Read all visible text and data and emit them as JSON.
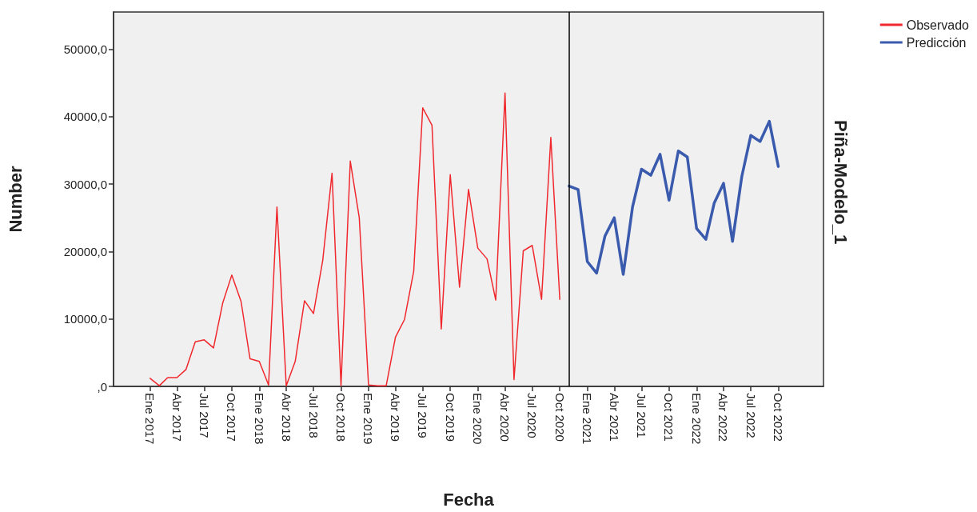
{
  "chart_data": {
    "type": "line",
    "xlabel": "Fecha",
    "ylabel": "Number",
    "annotations": [
      "Piña-Modelo_1"
    ],
    "legend": "top right",
    "xlim": [
      "2016-09-01",
      "2023-03-01"
    ],
    "xticks": [
      {
        "value": "2017-01",
        "label": "Ene 2017"
      },
      {
        "value": "2017-04",
        "label": "Abr 2017"
      },
      {
        "value": "2017-07",
        "label": "Jul 2017"
      },
      {
        "value": "2017-10",
        "label": "Oct 2017"
      },
      {
        "value": "2018-01",
        "label": "Ene 2018"
      },
      {
        "value": "2018-04",
        "label": "Abr 2018"
      },
      {
        "value": "2018-07",
        "label": "Jul 2018"
      },
      {
        "value": "2018-10",
        "label": "Oct 2018"
      },
      {
        "value": "2019-01",
        "label": "Ene 2019"
      },
      {
        "value": "2019-04",
        "label": "Abr 2019"
      },
      {
        "value": "2019-07",
        "label": "Jul 2019"
      },
      {
        "value": "2019-10",
        "label": "Oct 2019"
      },
      {
        "value": "2020-01",
        "label": "Ene 2020"
      },
      {
        "value": "2020-04",
        "label": "Abr 2020"
      },
      {
        "value": "2020-07",
        "label": "Jul 2020"
      },
      {
        "value": "2020-10",
        "label": "Oct 2020"
      },
      {
        "value": "2021-01",
        "label": "Ene 2021"
      },
      {
        "value": "2021-04",
        "label": "Abr 2021"
      },
      {
        "value": "2021-07",
        "label": "Jul 2021"
      },
      {
        "value": "2021-10",
        "label": "Oct 2021"
      },
      {
        "value": "2022-01",
        "label": "Ene 2022"
      },
      {
        "value": "2022-04",
        "label": "Abr 2022"
      },
      {
        "value": "2022-07",
        "label": "Jul 2022"
      },
      {
        "value": "2022-10",
        "label": "Oct 2022"
      }
    ],
    "ylim": [
      0,
      55500
    ],
    "yticks": [
      {
        "value": 0,
        "label": ",0"
      },
      {
        "value": 10000,
        "label": "10000,0"
      },
      {
        "value": 20000,
        "label": "20000,0"
      },
      {
        "value": 30000,
        "label": "30000,0"
      },
      {
        "value": 40000,
        "label": "40000,0"
      },
      {
        "value": 50000,
        "label": "50000,0"
      }
    ],
    "grid": false,
    "marker": "none",
    "ref_lines": [
      {
        "axis": "x",
        "value": "2020-11",
        "color": "#000000"
      }
    ],
    "series": [
      {
        "name": "Observado",
        "color": "#f0282d",
        "x": [
          "2017-01",
          "2017-02",
          "2017-03",
          "2017-04",
          "2017-05",
          "2017-06",
          "2017-07",
          "2017-08",
          "2017-09",
          "2017-10",
          "2017-11",
          "2017-12",
          "2018-01",
          "2018-02",
          "2018-03",
          "2018-04",
          "2018-05",
          "2018-06",
          "2018-07",
          "2018-08",
          "2018-09",
          "2018-10",
          "2018-11",
          "2018-12",
          "2019-01",
          "2019-02",
          "2019-03",
          "2019-04",
          "2019-05",
          "2019-06",
          "2019-07",
          "2019-08",
          "2019-09",
          "2019-10",
          "2019-11",
          "2019-12",
          "2020-01",
          "2020-02",
          "2020-03",
          "2020-04",
          "2020-05",
          "2020-06",
          "2020-07",
          "2020-08",
          "2020-09",
          "2020-10"
        ],
        "values": [
          1200,
          100,
          1300,
          1300,
          2500,
          6600,
          6900,
          5700,
          12400,
          16500,
          12600,
          4100,
          3700,
          200,
          26600,
          100,
          3700,
          12700,
          10800,
          18700,
          31600,
          100,
          33400,
          25000,
          200,
          100,
          100,
          7300,
          9900,
          17100,
          41300,
          38700,
          8500,
          31400,
          14700,
          29200,
          20500,
          18900,
          12800,
          43500,
          1000,
          20100,
          20900,
          12900,
          36900,
          12900
        ]
      },
      {
        "name": "Predicción",
        "color": "#3a5bad",
        "x": [
          "2020-11",
          "2020-12",
          "2021-01",
          "2021-02",
          "2021-03",
          "2021-04",
          "2021-05",
          "2021-06",
          "2021-07",
          "2021-08",
          "2021-09",
          "2021-10",
          "2021-11",
          "2021-12",
          "2022-01",
          "2022-02",
          "2022-03",
          "2022-04",
          "2022-05",
          "2022-06",
          "2022-07",
          "2022-08",
          "2022-09",
          "2022-10"
        ],
        "values": [
          29700,
          29200,
          18500,
          16800,
          22300,
          25000,
          16600,
          26600,
          32200,
          31300,
          34400,
          27600,
          34900,
          34000,
          23400,
          21800,
          27200,
          30100,
          21500,
          31100,
          37200,
          36300,
          39300,
          32600
        ]
      }
    ]
  }
}
